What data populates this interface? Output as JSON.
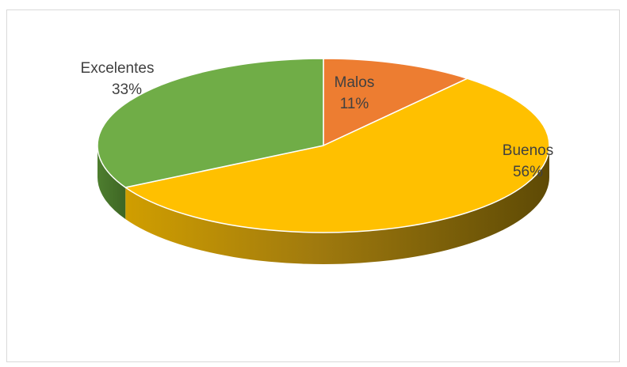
{
  "chart_data": {
    "type": "pie",
    "style": "3d",
    "title": "",
    "slices": [
      {
        "label": "Malos",
        "value": 11,
        "display": "11%",
        "color": "#ED7D31"
      },
      {
        "label": "Buenos",
        "value": 56,
        "display": "56%",
        "color": "#FFC000"
      },
      {
        "label": "Excelentes",
        "value": 33,
        "display": "33%",
        "color": "#70AD47"
      }
    ],
    "legend": "none"
  }
}
